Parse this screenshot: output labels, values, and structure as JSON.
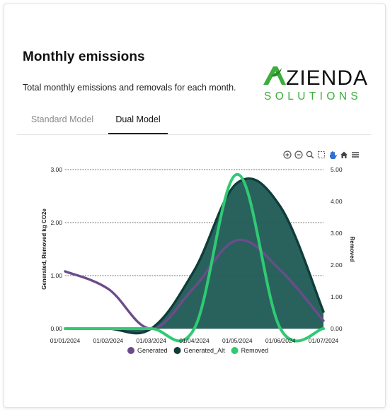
{
  "header": {
    "title": "Monthly emissions",
    "subtitle": "Total monthly emissions and removals for each month."
  },
  "logo": {
    "wordmark": "ZIENDA",
    "tagline": "SOLUTIONS",
    "color": "#3cae3c"
  },
  "tabs": [
    {
      "label": "Standard Model",
      "active": false
    },
    {
      "label": "Dual Model",
      "active": true
    }
  ],
  "toolbar": [
    "zoom-in-icon",
    "zoom-out-icon",
    "magnify-icon",
    "select-zoom-icon",
    "pan-hand-icon",
    "home-icon",
    "menu-icon"
  ],
  "chart_data": {
    "type": "area",
    "x": [
      "01/01/2024",
      "01/02/2024",
      "01/03/2024",
      "01/04/2024",
      "01/05/2024",
      "01/06/2024",
      "01/07/2024"
    ],
    "ylabel": "Generated, Removed kg CO2e",
    "y2label": "Removed",
    "ylim": [
      0,
      3
    ],
    "y2lim": [
      0,
      5
    ],
    "y_ticks": [
      "0.00",
      "1.00",
      "2.00",
      "3.00"
    ],
    "y2_ticks": [
      "0.00",
      "1.00",
      "2.00",
      "3.00",
      "4.00",
      "5.00"
    ],
    "grid": true,
    "legend_position": "bottom",
    "series": [
      {
        "name": "Generated",
        "axis": "left",
        "type": "line",
        "color": "#6b4c8a",
        "values": [
          1.08,
          0.75,
          0.0,
          0.78,
          1.67,
          1.1,
          0.15
        ]
      },
      {
        "name": "Generated_Alt",
        "axis": "left",
        "type": "area",
        "color": "#0f3d3a",
        "fill": "#1e5a54",
        "values": [
          0.0,
          0.0,
          0.0,
          1.1,
          2.75,
          2.3,
          0.32
        ]
      },
      {
        "name": "Removed",
        "axis": "right",
        "type": "line",
        "color": "#2fca73",
        "values": [
          0.0,
          0.0,
          0.0,
          0.0,
          4.85,
          0.0,
          0.0
        ]
      }
    ]
  }
}
